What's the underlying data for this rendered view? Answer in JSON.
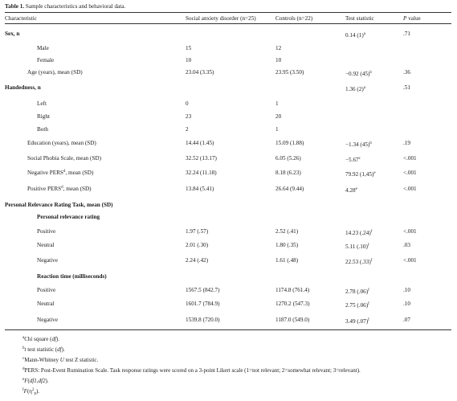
{
  "caption": {
    "label": "Table 1.",
    "text": "Sample characteristics and behavioral data."
  },
  "headers": {
    "characteristic": "Characteristic",
    "sad": "Social anxiety disorder (n=25)",
    "controls": "Controls (n=22)",
    "stat": "Test statistic",
    "p_italic": "P",
    "p_rest": " value"
  },
  "rows": [
    {
      "label": "Sex, n",
      "sad": "",
      "ctrl": "",
      "stat": "0.14 (1)",
      "stat_sup": "a",
      "p": ".71"
    },
    {
      "label": "Male",
      "sad": "15",
      "ctrl": "12",
      "stat": "",
      "stat_sup": "",
      "p": ""
    },
    {
      "label": "Female",
      "sad": "10",
      "ctrl": "10",
      "stat": "",
      "stat_sup": "",
      "p": ""
    },
    {
      "label": "Age (years), mean (SD)",
      "sad": "23.04 (3.35)",
      "ctrl": "23.95 (3.50)",
      "stat": "−0.92 (45)",
      "stat_sup": "b",
      "p": ".36"
    },
    {
      "label": "Handedness, n",
      "sad": "",
      "ctrl": "",
      "stat": "1.36 (2)",
      "stat_sup": "a",
      "p": ".51"
    },
    {
      "label": "Left",
      "sad": "0",
      "ctrl": "1",
      "stat": "",
      "stat_sup": "",
      "p": ""
    },
    {
      "label": "Right",
      "sad": "23",
      "ctrl": "20",
      "stat": "",
      "stat_sup": "",
      "p": ""
    },
    {
      "label": "Both",
      "sad": "2",
      "ctrl": "1",
      "stat": "",
      "stat_sup": "",
      "p": ""
    },
    {
      "label": "Education (years), mean (SD)",
      "sad": "14.44 (1.45)",
      "ctrl": "15.09 (1.88)",
      "stat": "−1.34 (45)",
      "stat_sup": "b",
      "p": ".19"
    },
    {
      "label": "Social Phobia Scale, mean (SD)",
      "sad": "32.52 (13.17)",
      "ctrl": "6.05 (5.26)",
      "stat": "−5.67",
      "stat_sup": "c",
      "p": "<.001"
    },
    {
      "label_pre": "Negative PERS",
      "label_sup": "d",
      "label_post": ", mean (SD)",
      "sad": "32.24 (11.18)",
      "ctrl": "8.18 (6.23)",
      "stat": "79.92 (1,45)",
      "stat_sup": "e",
      "p": "<.001"
    },
    {
      "label_pre": "Positive PERS",
      "label_sup": "d",
      "label_post": ", mean (SD)",
      "sad": "13.84 (5.41)",
      "ctrl": "26.64 (9.44)",
      "stat": "4.28",
      "stat_sup": "e",
      "p": "<.001"
    },
    {
      "label": "Personal Relevance Rating Task, mean (SD)",
      "sad": "",
      "ctrl": "",
      "stat": "",
      "stat_sup": "",
      "p": ""
    },
    {
      "label": "Personal relevance rating",
      "sad": "",
      "ctrl": "",
      "stat": "",
      "stat_sup": "",
      "p": ""
    },
    {
      "label": "Positive",
      "sad": "1.97 (.57)",
      "ctrl": "2.52 (.41)",
      "stat": "14.23 (.24)",
      "stat_sup": "f",
      "p": "<.001"
    },
    {
      "label": "Neutral",
      "sad": "2.01 (.30)",
      "ctrl": "1.80 (.35)",
      "stat": "5.11 (.10)",
      "stat_sup": "f",
      "p": ".03"
    },
    {
      "label": "Negative",
      "sad": "2.24 (.42)",
      "ctrl": "1.61 (.48)",
      "stat": "22.53 (.33)",
      "stat_sup": "f",
      "p": "<.001"
    },
    {
      "label": "Reaction time (milliseconds)",
      "sad": "",
      "ctrl": "",
      "stat": "",
      "stat_sup": "",
      "p": ""
    },
    {
      "label": "Positive",
      "sad": "1567.5 (842.7)",
      "ctrl": "1174.8 (761.4)",
      "stat": "2.78 (.06)",
      "stat_sup": "f",
      "p": ".10"
    },
    {
      "label": "Neutral",
      "sad": "1601.7 (784.9)",
      "ctrl": "1270.2 (547.3)",
      "stat": "2.75 (.06)",
      "stat_sup": "f",
      "p": ".10"
    },
    {
      "label": "Negative",
      "sad": "1539.8 (720.0)",
      "ctrl": "1187.0 (549.0)",
      "stat": "3.49 (.07)",
      "stat_sup": "f",
      "p": ".07"
    }
  ],
  "footnotes": {
    "a": {
      "sup": "a",
      "text": "Chi square (",
      "ital": "df",
      "after": ")."
    },
    "b": {
      "sup": "b",
      "ital1": "t",
      "text": " test statistic (",
      "ital2": "df",
      "after": ")."
    },
    "c": {
      "sup": "c",
      "text": "Mann-Whitney ",
      "ital": "U",
      "after": " test Z statistic."
    },
    "d": {
      "sup": "d",
      "text": "PERS: Post-Event Rumination Scale. Task response ratings were scored on a 3-point Likert scale (1=not relevant; 2=somewhat relevant; 3=relevant)."
    },
    "e": {
      "sup": "e",
      "ital": "F",
      "text": "(",
      "ital2": "df1,df2",
      "after": ")."
    },
    "f": {
      "sup": "f",
      "ital": "F",
      "text": "(η",
      "sup2": "2",
      "sub": "p",
      "after": ")."
    }
  }
}
